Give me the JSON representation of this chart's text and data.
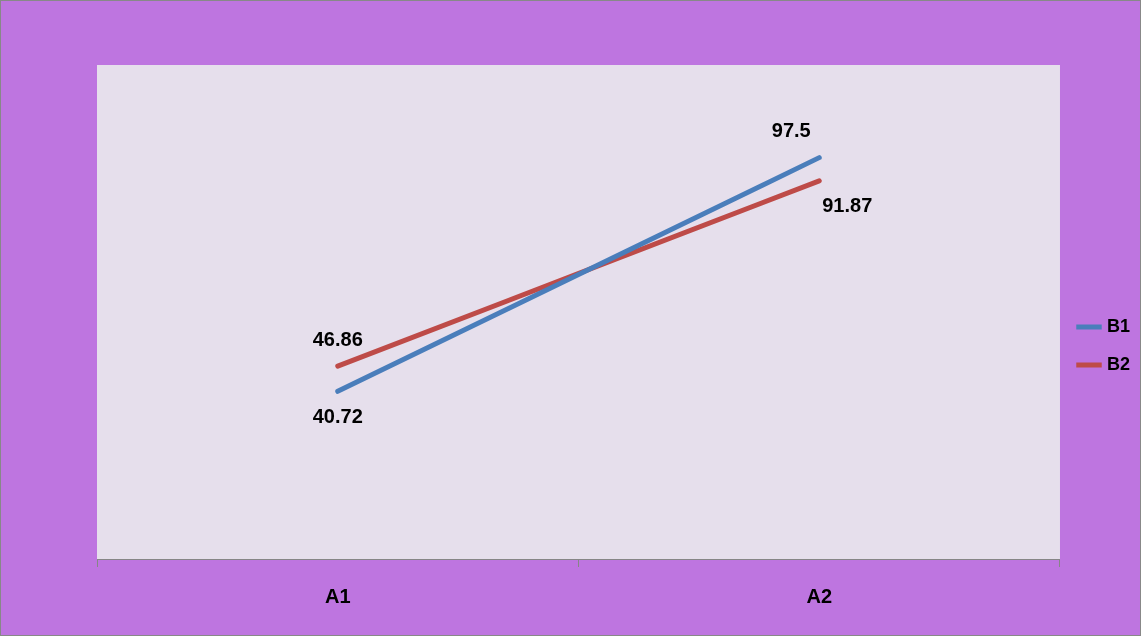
{
  "chart_data": {
    "type": "line",
    "categories": [
      "A1",
      "A2"
    ],
    "series": [
      {
        "name": "B1",
        "color": "#4a7ebb",
        "values": [
          40.72,
          97.5
        ]
      },
      {
        "name": "B2",
        "color": "#be4b48",
        "values": [
          46.86,
          91.87
        ]
      }
    ],
    "ylim": [
      0,
      120
    ],
    "data_labels": true,
    "legend": "right",
    "tick_labels": "x",
    "grid": false,
    "marker": "none"
  }
}
